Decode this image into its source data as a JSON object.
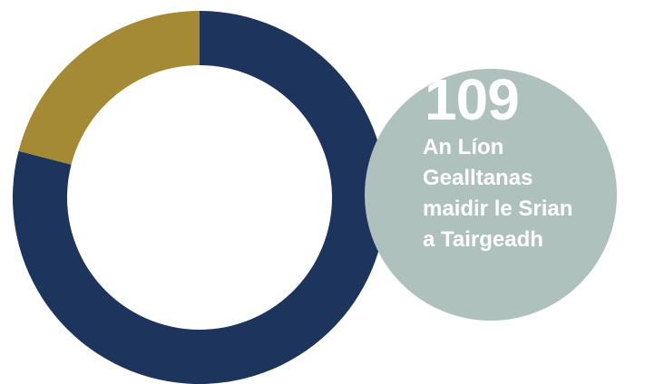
{
  "chart_data": {
    "type": "pie",
    "style": "donut",
    "categories": [
      "",
      ""
    ],
    "values": [
      79,
      21
    ],
    "colors": [
      "#1d345c",
      "#a48a34"
    ],
    "legend": "none"
  },
  "stat": {
    "value": "109",
    "label_lines": [
      "An Líon",
      "Gealltanas",
      "maidir le Srian",
      "a Tairgeadh"
    ],
    "circle_color": "#aec1bd"
  }
}
